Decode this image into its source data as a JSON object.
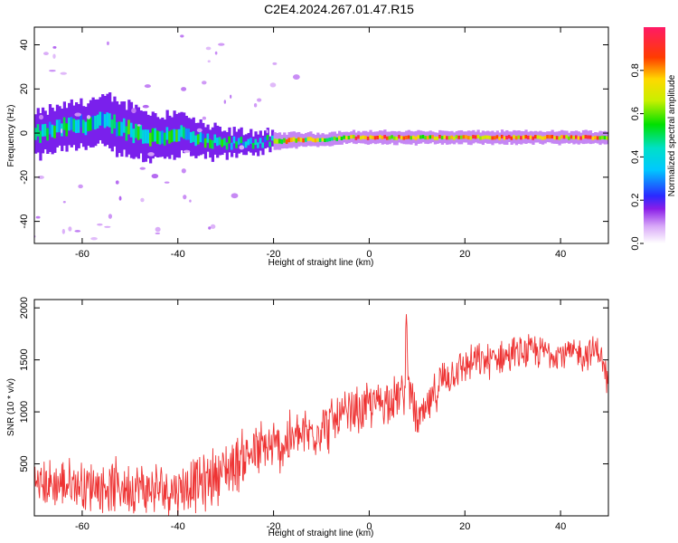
{
  "title": "C2E4.2024.267.01.47.R15",
  "chart_data": [
    {
      "type": "heatmap",
      "xlabel": "Height of straight line (km)",
      "ylabel": "Frequency (Hz)",
      "xlim": [
        -70,
        50
      ],
      "ylim": [
        -50,
        48
      ],
      "xticks": [
        -60,
        -40,
        -20,
        0,
        20,
        40
      ],
      "yticks": [
        -40,
        -20,
        0,
        20,
        40
      ],
      "colorbar": {
        "label": "Normalized spectral amplitude",
        "range": [
          0,
          1
        ],
        "ticks": [
          0.0,
          0.2,
          0.4,
          0.6,
          0.8
        ],
        "tick_labels": [
          "0.0",
          "0.2",
          "0.4",
          "0.6",
          "0.8"
        ]
      },
      "band_center": [
        [
          -70,
          -1
        ],
        [
          -65,
          2
        ],
        [
          -60,
          4
        ],
        [
          -55,
          5
        ],
        [
          -50,
          1
        ],
        [
          -45,
          -2
        ],
        [
          -40,
          0
        ],
        [
          -35,
          -4
        ],
        [
          -30,
          -5
        ],
        [
          -25,
          -4
        ],
        [
          -20,
          -4
        ],
        [
          -15,
          -3
        ],
        [
          -10,
          -3
        ],
        [
          -5,
          -2
        ],
        [
          0,
          -2
        ],
        [
          10,
          -2
        ],
        [
          20,
          -2
        ],
        [
          30,
          -2
        ],
        [
          40,
          -2
        ],
        [
          50,
          -2
        ]
      ],
      "band_halfwidth_hz": [
        [
          -70,
          5
        ],
        [
          -50,
          6
        ],
        [
          -40,
          5
        ],
        [
          -30,
          3
        ],
        [
          -20,
          2
        ],
        [
          -10,
          1.5
        ],
        [
          50,
          1.5
        ]
      ]
    },
    {
      "type": "line",
      "xlabel": "Height of straight line (km)",
      "ylabel": "SNR (10 * v/v)",
      "xlim": [
        -70,
        50
      ],
      "ylim": [
        0,
        2080
      ],
      "xticks": [
        -60,
        -40,
        -20,
        0,
        20,
        40
      ],
      "yticks": [
        500,
        1000,
        1500,
        2000
      ],
      "series": [
        {
          "color": "#ee3333",
          "trend": [
            [
              -70,
              300
            ],
            [
              -60,
              300
            ],
            [
              -50,
              280
            ],
            [
              -45,
              250
            ],
            [
              -40,
              260
            ],
            [
              -35,
              320
            ],
            [
              -30,
              450
            ],
            [
              -25,
              600
            ],
            [
              -20,
              650
            ],
            [
              -15,
              750
            ],
            [
              -10,
              850
            ],
            [
              -5,
              950
            ],
            [
              0,
              1050
            ],
            [
              5,
              1150
            ],
            [
              7,
              1150
            ],
            [
              8,
              1300
            ],
            [
              10,
              900
            ],
            [
              12,
              1000
            ],
            [
              15,
              1300
            ],
            [
              20,
              1450
            ],
            [
              25,
              1500
            ],
            [
              30,
              1550
            ],
            [
              35,
              1580
            ],
            [
              40,
              1570
            ],
            [
              45,
              1550
            ],
            [
              48,
              1600
            ],
            [
              50,
              1250
            ]
          ],
          "noise_amplitude": [
            [
              -70,
              200
            ],
            [
              -40,
              220
            ],
            [
              -25,
              250
            ],
            [
              0,
              200
            ],
            [
              20,
              150
            ],
            [
              50,
              130
            ]
          ]
        }
      ]
    }
  ]
}
